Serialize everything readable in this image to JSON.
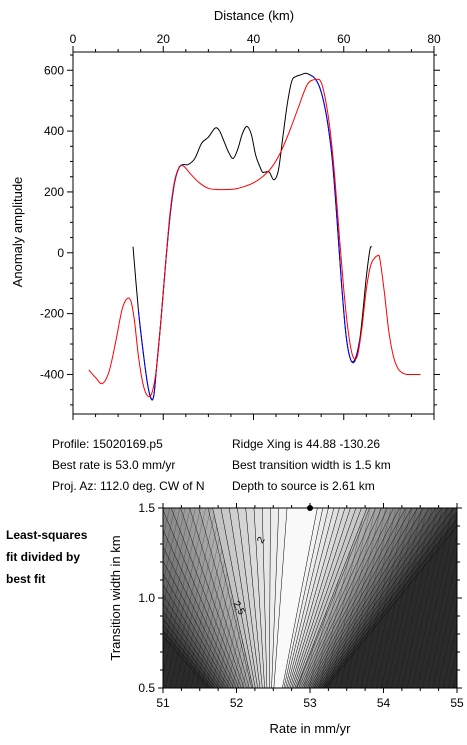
{
  "chart_data": [
    {
      "type": "line",
      "xlabel": "Distance (km)",
      "ylabel": "Anomaly amplitude",
      "xlim": [
        0,
        80
      ],
      "ylim": [
        -530,
        660
      ],
      "x_ticks": [
        "0",
        "20",
        "40",
        "60",
        "80"
      ],
      "y_ticks": [
        "600",
        "400",
        "200",
        "0",
        "-200",
        "-400"
      ],
      "grid": false,
      "series": [
        {
          "color": "#000000",
          "x": [
            13.3,
            14.5,
            15.5,
            16.5,
            17.3,
            17.9,
            18.5,
            19.5,
            20.5,
            21.5,
            22.5,
            23.5,
            24.5,
            25.5,
            27,
            28.5,
            30,
            31.5,
            32.5,
            33.5,
            34.5,
            35.5,
            36.5,
            37.5,
            38.5,
            39.5,
            40.5,
            41.5,
            42,
            42.5,
            43.5,
            44.5,
            45.5,
            46.5,
            47.5,
            48.5,
            49.5,
            50.5,
            51.5,
            52.5,
            53.5,
            54.5,
            55.5,
            56.5,
            57.5,
            58.5,
            59.5,
            60.5,
            61.5,
            62.5,
            63.5,
            64.2,
            65,
            65.8,
            66.2
          ],
          "y": [
            20,
            -190,
            -320,
            -430,
            -480,
            -470,
            -380,
            -220,
            -40,
            120,
            230,
            280,
            290,
            290,
            310,
            360,
            380,
            410,
            400,
            365,
            330,
            310,
            340,
            390,
            415,
            390,
            320,
            280,
            265,
            265,
            265,
            240,
            270,
            380,
            490,
            565,
            580,
            585,
            590,
            585,
            575,
            550,
            500,
            420,
            300,
            110,
            -100,
            -270,
            -350,
            -350,
            -290,
            -200,
            -80,
            10,
            20
          ]
        },
        {
          "color": "#0000ff",
          "x": [
            14.5,
            15.5,
            16.5,
            17.3,
            17.9,
            18.5,
            19.5,
            20.5,
            21.5,
            22.5,
            23.5,
            24.5,
            52.5,
            53.5,
            54.5,
            55.5,
            56.5,
            57.5,
            58.5,
            59.5,
            60.5,
            61.5,
            62.5,
            63.5
          ],
          "y": [
            -190,
            -320,
            -430,
            -478,
            -470,
            -380,
            -220,
            -40,
            120,
            230,
            280,
            290,
            585,
            575,
            550,
            500,
            420,
            300,
            110,
            -100,
            -270,
            -350,
            -355,
            -290
          ]
        },
        {
          "color": "#ff0000",
          "x": [
            3.5,
            5,
            6.5,
            8,
            9.5,
            11,
            12.5,
            13.5,
            14.5,
            15.5,
            16.5,
            17.5,
            18.5,
            19.5,
            20.5,
            21.5,
            22.5,
            23.5,
            24.5,
            26,
            28,
            30,
            32,
            34,
            36,
            38,
            40,
            42,
            44,
            46,
            48,
            50,
            52,
            54,
            55,
            56,
            57,
            58,
            59,
            60,
            61,
            62,
            63,
            64,
            65,
            66,
            67,
            67.5,
            68,
            69,
            70,
            71,
            72,
            73,
            74,
            75,
            76,
            77
          ],
          "y": [
            -385,
            -410,
            -430,
            -390,
            -290,
            -180,
            -150,
            -210,
            -340,
            -430,
            -470,
            -460,
            -380,
            -220,
            -40,
            130,
            235,
            280,
            285,
            260,
            230,
            212,
            208,
            208,
            210,
            218,
            230,
            250,
            280,
            330,
            400,
            480,
            555,
            570,
            560,
            500,
            400,
            250,
            60,
            -120,
            -260,
            -340,
            -340,
            -250,
            -120,
            -40,
            -15,
            -10,
            -20,
            -130,
            -260,
            -340,
            -380,
            -395,
            -400,
            -400,
            -400,
            -400
          ]
        }
      ]
    },
    {
      "type": "heatmap",
      "xlabel": "Rate in mm/yr",
      "ylabel": "Transition width in km",
      "xlim": [
        51,
        55
      ],
      "ylim": [
        0.5,
        1.5
      ],
      "x_ticks": [
        "51",
        "52",
        "53",
        "54",
        "55"
      ],
      "y_ticks": [
        "1.5",
        "1.0",
        "0.5"
      ],
      "contour_labels": [
        "2",
        "2.5"
      ],
      "best_fit": {
        "rate": 53.0,
        "width": 1.5
      },
      "title": "Least-squares fit divided by best fit"
    }
  ],
  "info": {
    "profile": "Profile: 15020169.p5",
    "ridge": "Ridge Xing is 44.88 -130.26",
    "rate": "Best rate is 53.0 mm/yr",
    "width": "Best transition width is 1.5 km",
    "az": "Proj. Az: 112.0 deg. CW of N",
    "depth": "Depth to source is   2.61 km"
  },
  "side": {
    "l1": "Least-squares",
    "l2": "fit divided by",
    "l3": "best fit"
  }
}
